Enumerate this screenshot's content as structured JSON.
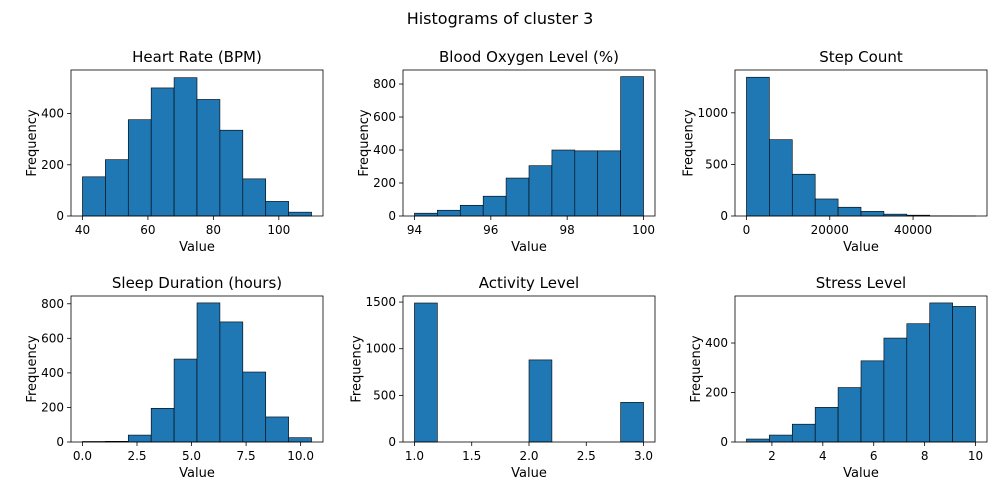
{
  "suptitle": "Histograms of cluster 3",
  "colors": {
    "bar": "#1f77b4",
    "edge": "#000000"
  },
  "chart_data": [
    {
      "type": "bar",
      "title": "Heart Rate (BPM)",
      "xlabel": "Value",
      "ylabel": "Frequency",
      "bin_edges": [
        40,
        47,
        54,
        61,
        68,
        75,
        82,
        89,
        96,
        103,
        110
      ],
      "values": [
        153,
        220,
        376,
        500,
        540,
        455,
        335,
        145,
        57,
        15
      ],
      "xlim": [
        36.5,
        113.5
      ],
      "ylim": [
        0,
        570
      ],
      "xticks": [
        40,
        60,
        80,
        100
      ],
      "xtick_labels": [
        "40",
        "60",
        "80",
        "100"
      ],
      "yticks": [
        0,
        200,
        400
      ],
      "ytick_labels": [
        "0",
        "200",
        "400"
      ],
      "grid": false,
      "legend": "none"
    },
    {
      "type": "bar",
      "title": "Blood Oxygen Level (%)",
      "xlabel": "Value",
      "ylabel": "Frequency",
      "bin_edges": [
        94,
        94.6,
        95.2,
        95.8,
        96.4,
        97,
        97.6,
        98.2,
        98.8,
        99.4,
        100
      ],
      "values": [
        17,
        35,
        65,
        120,
        230,
        305,
        400,
        395,
        395,
        845
      ],
      "xlim": [
        93.7,
        100.3
      ],
      "ylim": [
        0,
        885
      ],
      "xticks": [
        94,
        96,
        98,
        100
      ],
      "xtick_labels": [
        "94",
        "96",
        "98",
        "100"
      ],
      "yticks": [
        0,
        200,
        400,
        600,
        800
      ],
      "ytick_labels": [
        "0",
        "200",
        "400",
        "600",
        "800"
      ],
      "grid": false,
      "legend": "none"
    },
    {
      "type": "bar",
      "title": "Step Count",
      "xlabel": "Value",
      "ylabel": "Frequency",
      "bin_edges": [
        0,
        5500,
        11000,
        16500,
        22000,
        27500,
        33000,
        38500,
        44000,
        49500,
        55000
      ],
      "values": [
        1345,
        740,
        405,
        165,
        85,
        45,
        18,
        8,
        2,
        1
      ],
      "xlim": [
        -2750,
        57750
      ],
      "ylim": [
        0,
        1415
      ],
      "xticks": [
        0,
        20000,
        40000
      ],
      "xtick_labels": [
        "0",
        "20000",
        "40000"
      ],
      "yticks": [
        0,
        500,
        1000
      ],
      "ytick_labels": [
        "0",
        "500",
        "1000"
      ],
      "grid": false,
      "legend": "none"
    },
    {
      "type": "bar",
      "title": "Sleep Duration (hours)",
      "xlabel": "Value",
      "ylabel": "Frequency",
      "bin_edges": [
        0,
        1.05,
        2.1,
        3.15,
        4.2,
        5.25,
        6.3,
        7.35,
        8.4,
        9.45,
        10.5
      ],
      "values": [
        3,
        4,
        40,
        195,
        480,
        805,
        695,
        405,
        145,
        25
      ],
      "xlim": [
        -0.525,
        11.025
      ],
      "ylim": [
        0,
        845
      ],
      "xticks": [
        0,
        2.5,
        5,
        7.5,
        10
      ],
      "xtick_labels": [
        "0.0",
        "2.5",
        "5.0",
        "7.5",
        "10.0"
      ],
      "yticks": [
        0,
        200,
        400,
        600,
        800
      ],
      "ytick_labels": [
        "0",
        "200",
        "400",
        "600",
        "800"
      ],
      "grid": false,
      "legend": "none"
    },
    {
      "type": "bar",
      "title": "Activity Level",
      "xlabel": "Value",
      "ylabel": "Frequency",
      "bin_edges": [
        1,
        1.2,
        1.4,
        1.6,
        1.8,
        2,
        2.2,
        2.4,
        2.6,
        2.8,
        3
      ],
      "values": [
        1490,
        0,
        0,
        0,
        0,
        880,
        0,
        0,
        0,
        425
      ],
      "xlim": [
        0.9,
        3.1
      ],
      "ylim": [
        0,
        1565
      ],
      "xticks": [
        1,
        1.5,
        2,
        2.5,
        3
      ],
      "xtick_labels": [
        "1.0",
        "1.5",
        "2.0",
        "2.5",
        "3.0"
      ],
      "yticks": [
        0,
        500,
        1000,
        1500
      ],
      "ytick_labels": [
        "0",
        "500",
        "1000",
        "1500"
      ],
      "grid": false,
      "legend": "none"
    },
    {
      "type": "bar",
      "title": "Stress Level",
      "xlabel": "Value",
      "ylabel": "Frequency",
      "bin_edges": [
        1,
        1.9,
        2.8,
        3.7,
        4.6,
        5.5,
        6.4,
        7.3,
        8.2,
        9.1,
        10
      ],
      "values": [
        12,
        28,
        72,
        140,
        220,
        328,
        420,
        478,
        562,
        548
      ],
      "xlim": [
        0.55,
        10.45
      ],
      "ylim": [
        0,
        590
      ],
      "xticks": [
        2,
        4,
        6,
        8,
        10
      ],
      "xtick_labels": [
        "2",
        "4",
        "6",
        "8",
        "10"
      ],
      "yticks": [
        0,
        200,
        400
      ],
      "ytick_labels": [
        "0",
        "200",
        "400"
      ],
      "grid": false,
      "legend": "none"
    }
  ]
}
